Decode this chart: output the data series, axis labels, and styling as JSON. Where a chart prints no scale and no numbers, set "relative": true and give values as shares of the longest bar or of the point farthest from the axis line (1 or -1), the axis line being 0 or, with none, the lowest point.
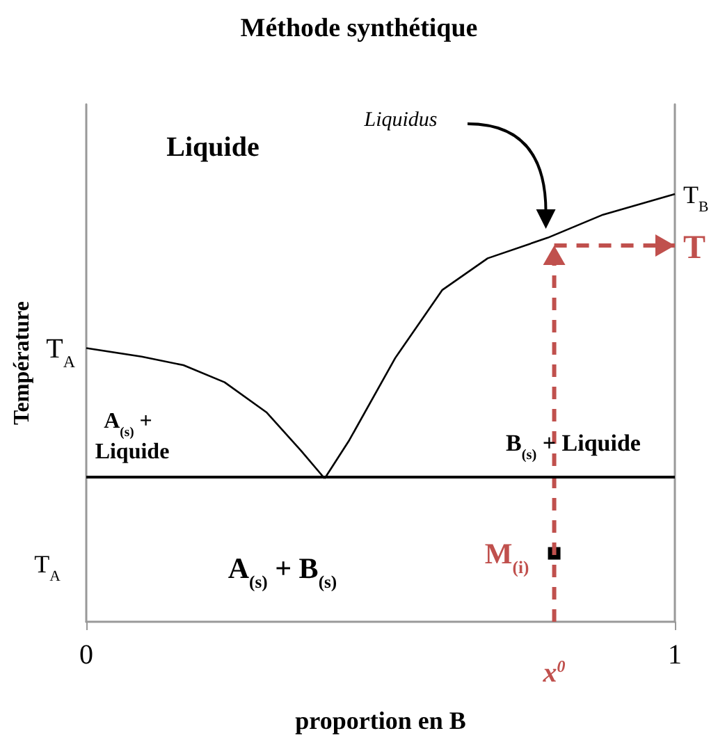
{
  "chart_data": {
    "type": "line",
    "title": "Méthode synthétique",
    "xlabel": "proportion en B",
    "ylabel": "Température",
    "relative": true,
    "xlim": [
      0,
      1
    ],
    "xticks": [
      0,
      1
    ],
    "series": [
      {
        "color": "#000000",
        "x": [
          0,
          0.094,
          0.165,
          0.235,
          0.306,
          0.365,
          0.405
        ],
        "values": [
          0.64,
          0.62,
          0.6,
          0.56,
          0.49,
          0.4,
          0.335
        ]
      },
      {
        "color": "#000000",
        "x": [
          0.405,
          0.447,
          0.525,
          0.605,
          0.682,
          0.784,
          0.878,
          1
        ],
        "values": [
          0.335,
          0.425,
          0.617,
          0.776,
          0.85,
          0.898,
          0.952,
          1
        ]
      },
      {
        "type": "scatter",
        "marker": "square",
        "color": "#000000",
        "x": [
          0.795
        ],
        "values": [
          0.16
        ]
      }
    ],
    "ref_lines": [
      {
        "axis": "y",
        "value": 0.335,
        "color": "#000000"
      },
      {
        "axis": "x",
        "value": 0.795,
        "label": "x$^{0}$",
        "color": "#c0504d",
        "line_style": "dashed"
      },
      {
        "axis": "y",
        "value": 0.88,
        "label": "T",
        "color": "#c0504d",
        "line_style": "dashed"
      }
    ],
    "annotations": [
      "Liquide",
      "Liquidus",
      {
        "text": "T$_{A}$",
        "x": 0,
        "y": 0.64
      },
      "A$_{(s)}$ +",
      "Liquide",
      "B$_{(s)}$ + Liquide",
      "T$_{A}$",
      "A$_{(s)}$ + B$_{(s)}$",
      {
        "text": "M$_{(i)}$",
        "x": 0.795,
        "y": 0.16
      },
      {
        "text": "T$_{B}$",
        "x": 1,
        "y": 1
      }
    ]
  }
}
